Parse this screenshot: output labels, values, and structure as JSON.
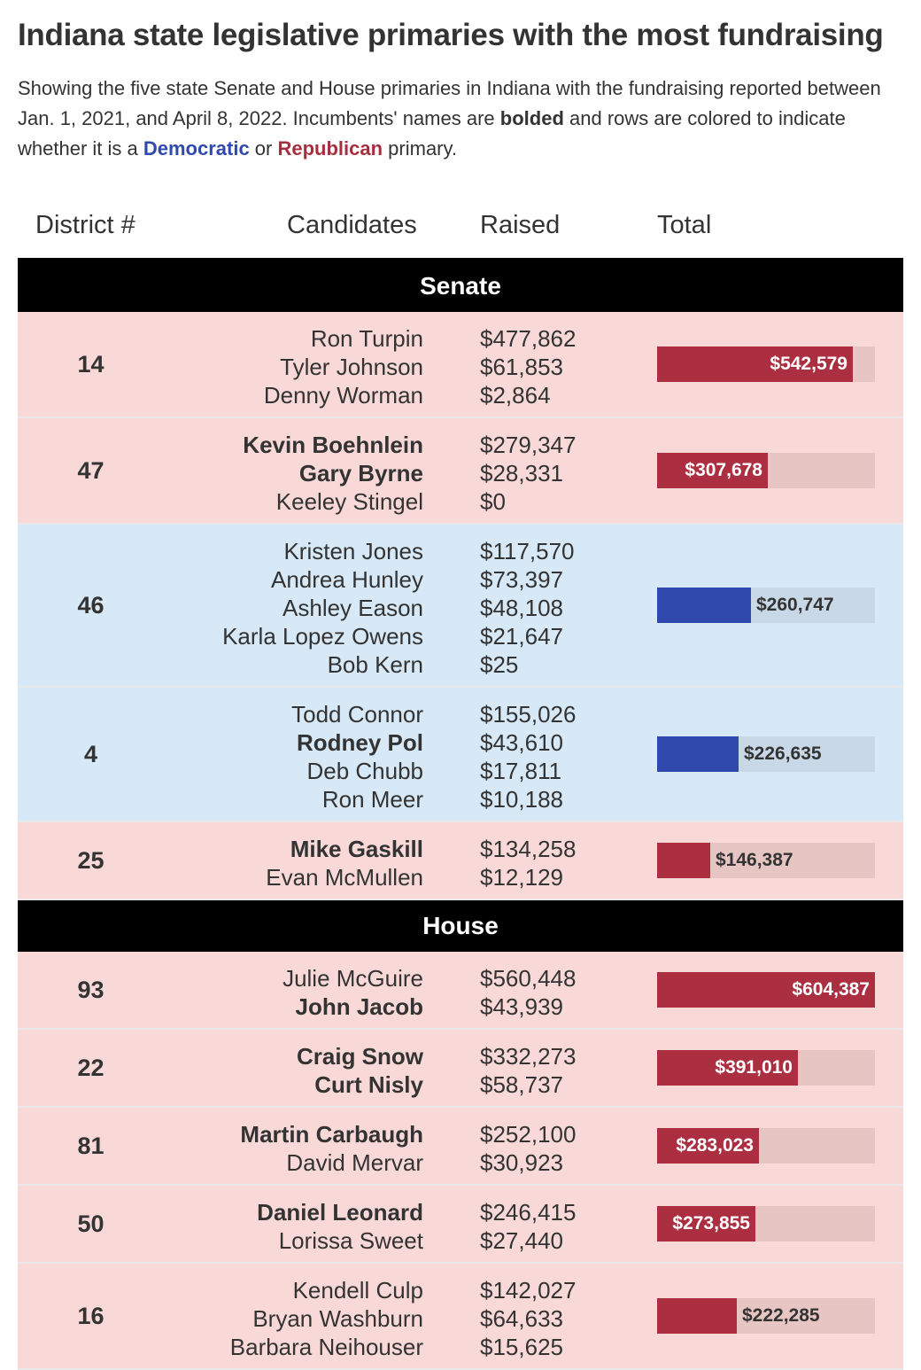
{
  "title": "Indiana state legislative primaries with the most fundraising",
  "subtitle": {
    "part1": "Showing the five state Senate and House primaries in Indiana with the fundraising reported between Jan. 1, 2021, and April 8, 2022. Incumbents' names are ",
    "bolded": "bolded",
    "part2": " and rows are colored to indicate whether it is a ",
    "democratic": "Democratic",
    "or": " or ",
    "republican": "Republican",
    "part3": " primary."
  },
  "headers": {
    "district": "District #",
    "candidates": "Candidates",
    "raised": "Raised",
    "total": "Total"
  },
  "colors": {
    "rep_bar": "#ab2f41",
    "rep_row": "#f9d9d7",
    "rep_track": "#e6c5c3",
    "dem_bar": "#3049ad",
    "dem_row": "#d7e8f6",
    "dem_track": "#c9d8e6"
  },
  "chart_data": {
    "type": "table",
    "bar_max": 604387,
    "sections": [
      {
        "name": "Senate",
        "rows": [
          {
            "district": "14",
            "party": "rep",
            "total": 542579,
            "total_label": "$542,579",
            "candidates": [
              {
                "name": "Ron Turpin",
                "raised": "$477,862",
                "incumbent": false
              },
              {
                "name": "Tyler Johnson",
                "raised": "$61,853",
                "incumbent": false
              },
              {
                "name": "Denny Worman",
                "raised": "$2,864",
                "incumbent": false
              }
            ]
          },
          {
            "district": "47",
            "party": "rep",
            "total": 307678,
            "total_label": "$307,678",
            "candidates": [
              {
                "name": "Kevin Boehnlein",
                "raised": "$279,347",
                "incumbent": true
              },
              {
                "name": "Gary Byrne",
                "raised": "$28,331",
                "incumbent": true
              },
              {
                "name": "Keeley Stingel",
                "raised": "$0",
                "incumbent": false
              }
            ]
          },
          {
            "district": "46",
            "party": "dem",
            "total": 260747,
            "total_label": "$260,747",
            "candidates": [
              {
                "name": "Kristen Jones",
                "raised": "$117,570",
                "incumbent": false
              },
              {
                "name": "Andrea Hunley",
                "raised": "$73,397",
                "incumbent": false
              },
              {
                "name": "Ashley Eason",
                "raised": "$48,108",
                "incumbent": false
              },
              {
                "name": "Karla Lopez Owens",
                "raised": "$21,647",
                "incumbent": false
              },
              {
                "name": "Bob Kern",
                "raised": "$25",
                "incumbent": false
              }
            ]
          },
          {
            "district": "4",
            "party": "dem",
            "total": 226635,
            "total_label": "$226,635",
            "candidates": [
              {
                "name": "Todd Connor",
                "raised": "$155,026",
                "incumbent": false
              },
              {
                "name": "Rodney Pol",
                "raised": "$43,610",
                "incumbent": true
              },
              {
                "name": "Deb Chubb",
                "raised": "$17,811",
                "incumbent": false
              },
              {
                "name": "Ron Meer",
                "raised": "$10,188",
                "incumbent": false
              }
            ]
          },
          {
            "district": "25",
            "party": "rep",
            "total": 146387,
            "total_label": "$146,387",
            "candidates": [
              {
                "name": "Mike Gaskill",
                "raised": "$134,258",
                "incumbent": true
              },
              {
                "name": "Evan McMullen",
                "raised": "$12,129",
                "incumbent": false
              }
            ]
          }
        ]
      },
      {
        "name": "House",
        "rows": [
          {
            "district": "93",
            "party": "rep",
            "total": 604387,
            "total_label": "$604,387",
            "candidates": [
              {
                "name": "Julie McGuire",
                "raised": "$560,448",
                "incumbent": false
              },
              {
                "name": "John Jacob",
                "raised": "$43,939",
                "incumbent": true
              }
            ]
          },
          {
            "district": "22",
            "party": "rep",
            "total": 391010,
            "total_label": "$391,010",
            "candidates": [
              {
                "name": "Craig Snow",
                "raised": "$332,273",
                "incumbent": true
              },
              {
                "name": "Curt Nisly",
                "raised": "$58,737",
                "incumbent": true
              }
            ]
          },
          {
            "district": "81",
            "party": "rep",
            "total": 283023,
            "total_label": "$283,023",
            "candidates": [
              {
                "name": "Martin Carbaugh",
                "raised": "$252,100",
                "incumbent": true
              },
              {
                "name": "David Mervar",
                "raised": "$30,923",
                "incumbent": false
              }
            ]
          },
          {
            "district": "50",
            "party": "rep",
            "total": 273855,
            "total_label": "$273,855",
            "candidates": [
              {
                "name": "Daniel Leonard",
                "raised": "$246,415",
                "incumbent": true
              },
              {
                "name": "Lorissa Sweet",
                "raised": "$27,440",
                "incumbent": false
              }
            ]
          },
          {
            "district": "16",
            "party": "rep",
            "total": 222285,
            "total_label": "$222,285",
            "candidates": [
              {
                "name": "Kendell Culp",
                "raised": "$142,027",
                "incumbent": false
              },
              {
                "name": "Bryan Washburn",
                "raised": "$64,633",
                "incumbent": false
              },
              {
                "name": "Barbara Neihouser",
                "raised": "$15,625",
                "incumbent": false
              }
            ]
          }
        ]
      }
    ]
  }
}
